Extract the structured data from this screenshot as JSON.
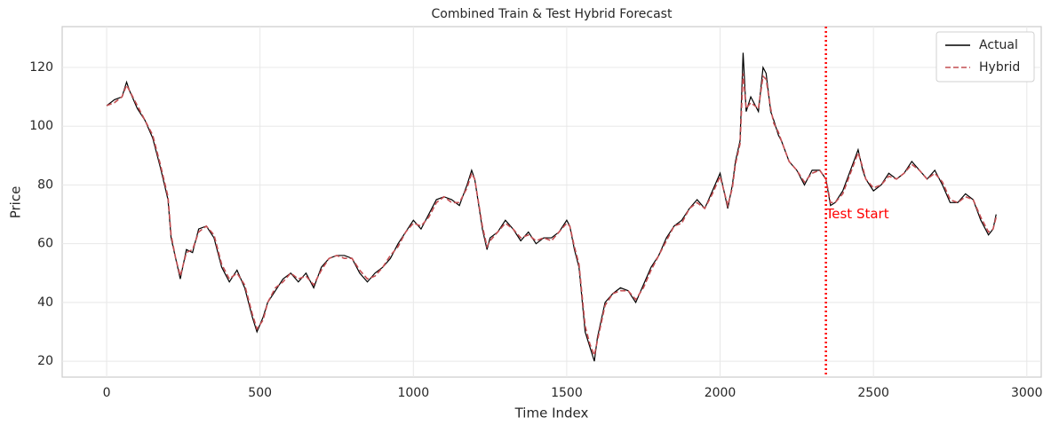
{
  "chart_data": {
    "type": "line",
    "title": "Combined Train & Test Hybrid Forecast",
    "x_label": "Time Index",
    "y_label": "Price",
    "x": [
      0,
      25,
      50,
      65,
      75,
      100,
      125,
      150,
      175,
      200,
      210,
      225,
      240,
      260,
      280,
      300,
      325,
      350,
      375,
      400,
      425,
      450,
      475,
      490,
      510,
      525,
      550,
      575,
      600,
      625,
      650,
      675,
      700,
      725,
      750,
      775,
      800,
      825,
      850,
      875,
      900,
      925,
      950,
      975,
      1000,
      1025,
      1050,
      1075,
      1100,
      1125,
      1150,
      1175,
      1190,
      1200,
      1225,
      1240,
      1250,
      1275,
      1300,
      1325,
      1350,
      1375,
      1400,
      1425,
      1450,
      1475,
      1500,
      1510,
      1525,
      1540,
      1560,
      1575,
      1590,
      1600,
      1625,
      1650,
      1675,
      1700,
      1725,
      1750,
      1775,
      1800,
      1825,
      1850,
      1875,
      1900,
      1925,
      1950,
      1975,
      2000,
      2025,
      2040,
      2050,
      2065,
      2075,
      2085,
      2100,
      2125,
      2140,
      2150,
      2165,
      2175,
      2190,
      2200,
      2225,
      2250,
      2275,
      2300,
      2325,
      2345,
      2360,
      2375,
      2400,
      2425,
      2450,
      2465,
      2475,
      2500,
      2525,
      2550,
      2575,
      2600,
      2625,
      2650,
      2675,
      2700,
      2725,
      2750,
      2775,
      2800,
      2825,
      2850,
      2875,
      2890,
      2900
    ],
    "series": [
      {
        "name": "Actual",
        "color": "#000000",
        "dash": false,
        "values": [
          107,
          109,
          110,
          115,
          112,
          106,
          102,
          96,
          86,
          75,
          62,
          55,
          48,
          58,
          57,
          65,
          66,
          62,
          52,
          47,
          51,
          45,
          35,
          30,
          35,
          40,
          44,
          48,
          50,
          47,
          50,
          45,
          52,
          55,
          56,
          56,
          55,
          50,
          47,
          50,
          52,
          55,
          60,
          64,
          68,
          65,
          70,
          75,
          76,
          75,
          73,
          80,
          85,
          82,
          65,
          58,
          62,
          64,
          68,
          65,
          61,
          64,
          60,
          62,
          62,
          64,
          68,
          66,
          58,
          52,
          30,
          25,
          20,
          28,
          40,
          43,
          45,
          44,
          40,
          46,
          52,
          56,
          62,
          66,
          68,
          72,
          75,
          72,
          78,
          84,
          72,
          80,
          88,
          95,
          125,
          105,
          110,
          105,
          120,
          118,
          105,
          102,
          97,
          95,
          88,
          85,
          80,
          85,
          85,
          82,
          73,
          74,
          78,
          85,
          92,
          85,
          82,
          78,
          80,
          84,
          82,
          84,
          88,
          85,
          82,
          85,
          80,
          74,
          74,
          77,
          75,
          68,
          63,
          65,
          70
        ]
      },
      {
        "name": "Hybrid",
        "color": "#c44e52",
        "dash": true,
        "values": [
          107,
          108,
          110,
          114,
          112,
          107,
          102,
          97,
          87,
          76,
          63,
          55,
          49,
          57,
          58,
          64,
          66,
          63,
          53,
          48,
          50,
          46,
          36,
          31,
          34,
          40,
          45,
          47,
          50,
          48,
          49,
          46,
          51,
          55,
          56,
          55,
          55,
          51,
          48,
          49,
          52,
          56,
          59,
          64,
          67,
          66,
          69,
          74,
          76,
          74,
          74,
          79,
          84,
          82,
          66,
          59,
          61,
          64,
          67,
          65,
          62,
          63,
          61,
          62,
          61,
          64,
          67,
          66,
          59,
          53,
          32,
          26,
          22,
          27,
          39,
          43,
          44,
          44,
          41,
          45,
          51,
          56,
          61,
          66,
          67,
          72,
          74,
          72,
          77,
          83,
          73,
          79,
          87,
          94,
          118,
          106,
          108,
          106,
          117,
          116,
          106,
          101,
          98,
          95,
          88,
          85,
          81,
          84,
          85,
          82,
          74,
          74,
          77,
          84,
          91,
          86,
          82,
          79,
          80,
          83,
          82,
          84,
          87,
          85,
          82,
          84,
          81,
          75,
          74,
          76,
          75,
          69,
          64,
          65,
          69
        ]
      }
    ],
    "xlim": [
      -145,
      3047
    ],
    "ylim": [
      14.6,
      133.9
    ],
    "xticks": [
      0,
      500,
      1000,
      1500,
      2000,
      2500,
      3000
    ],
    "yticks": [
      20,
      40,
      60,
      80,
      100,
      120
    ],
    "grid": true,
    "legend": "upper right",
    "vline": {
      "x": 2345,
      "color": "#ff0000"
    },
    "annotation": {
      "text": "Test Start",
      "x": 2345,
      "y": 70,
      "color": "#ff0000"
    }
  }
}
